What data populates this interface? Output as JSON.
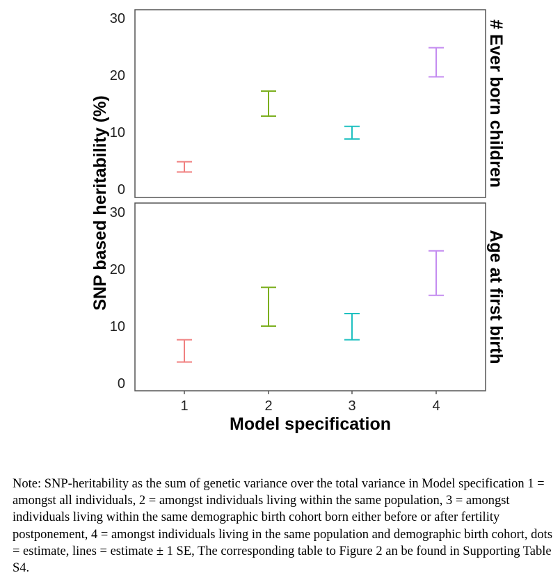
{
  "chart_data": {
    "type": "errorbar",
    "xlabel": "Model specification",
    "ylabel": "SNP based heritability (%)",
    "categories": [
      "1",
      "2",
      "3",
      "4"
    ],
    "ylim": [
      0,
      30
    ],
    "yticks": [
      "0",
      "10",
      "20",
      "30"
    ],
    "colors": [
      "#f08080",
      "#7caf1f",
      "#1fc0c0",
      "#c48cf0"
    ],
    "panels": [
      {
        "label": "# Ever born children",
        "intervals": [
          {
            "model": "1",
            "lower": 3.0,
            "upper": 4.8
          },
          {
            "model": "2",
            "lower": 12.8,
            "upper": 17.2
          },
          {
            "model": "3",
            "lower": 8.8,
            "upper": 11.0
          },
          {
            "model": "4",
            "lower": 19.7,
            "upper": 24.8
          }
        ]
      },
      {
        "label": "Age at first birth",
        "intervals": [
          {
            "model": "1",
            "lower": 3.7,
            "upper": 7.6
          },
          {
            "model": "2",
            "lower": 10.0,
            "upper": 16.8
          },
          {
            "model": "3",
            "lower": 7.6,
            "upper": 12.2
          },
          {
            "model": "4",
            "lower": 15.4,
            "upper": 23.2
          }
        ]
      }
    ]
  },
  "note": {
    "text": "Note: SNP-heritability as the sum of genetic variance over the total variance in Model specification 1 = amongst all individuals, 2 = amongst individuals living within the same population, 3 = amongst individuals living within the same demographic birth cohort born either before or after fertility postponement, 4 = amongst individuals living in the same population and demographic birth cohort, dots = estimate, lines = estimate ± 1 SE, The corresponding table to Figure 2 an be found in Supporting Table S4."
  }
}
